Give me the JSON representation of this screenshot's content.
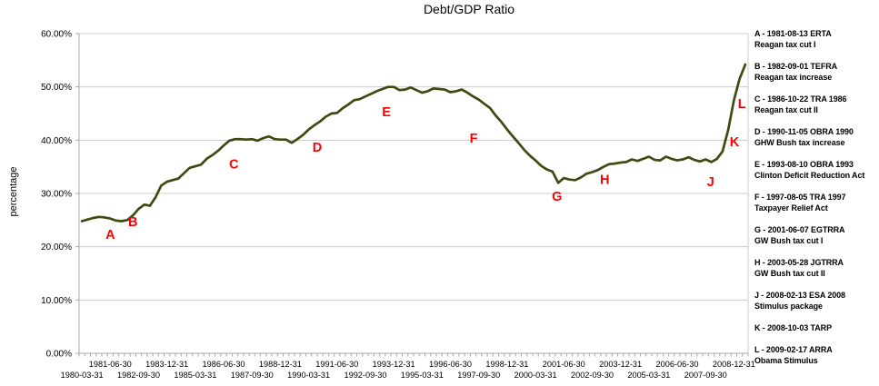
{
  "chart_data": {
    "type": "line",
    "title": "Debt/GDP Ratio",
    "ylabel": "percentage",
    "ylim": [
      0,
      60
    ],
    "grid": "horizontal",
    "legend_position": "right",
    "line_color": "#3E4A12",
    "annotation_color": "#FF0000",
    "gridline_color": "#cccccc",
    "axis_color": "#a8a8a8",
    "y_tick_labels": [
      "0.00%",
      "10.00%",
      "20.00%",
      "30.00%",
      "40.00%",
      "50.00%",
      "60.00%"
    ],
    "x_label_step": 5,
    "x_axis_labels": [
      "1980-03-31",
      "1981-06-30",
      "1982-09-30",
      "1983-12-31",
      "1985-03-31",
      "1986-06-30",
      "1987-09-30",
      "1988-12-31",
      "1990-03-31",
      "1991-06-30",
      "1992-09-30",
      "1993-12-31",
      "1995-03-31",
      "1996-06-30",
      "1997-09-30",
      "1998-12-31",
      "2000-03-31",
      "2001-06-30",
      "2002-09-30",
      "2003-12-31",
      "2005-03-31",
      "2006-06-30",
      "2007-09-30",
      "2008-12-31"
    ],
    "x": [
      "1980-03-31",
      "1980-06-30",
      "1980-09-30",
      "1980-12-31",
      "1981-03-31",
      "1981-06-30",
      "1981-09-30",
      "1981-12-31",
      "1982-03-31",
      "1982-06-30",
      "1982-09-30",
      "1982-12-31",
      "1983-03-31",
      "1983-06-30",
      "1983-09-30",
      "1983-12-31",
      "1984-03-31",
      "1984-06-30",
      "1984-09-30",
      "1984-12-31",
      "1985-03-31",
      "1985-06-30",
      "1985-09-30",
      "1985-12-31",
      "1986-03-31",
      "1986-06-30",
      "1986-09-30",
      "1986-12-31",
      "1987-03-31",
      "1987-06-30",
      "1987-09-30",
      "1987-12-31",
      "1988-03-31",
      "1988-06-30",
      "1988-09-30",
      "1988-12-31",
      "1989-03-31",
      "1989-06-30",
      "1989-09-30",
      "1989-12-31",
      "1990-03-31",
      "1990-06-30",
      "1990-09-30",
      "1990-12-31",
      "1991-03-31",
      "1991-06-30",
      "1991-09-30",
      "1991-12-31",
      "1992-03-31",
      "1992-06-30",
      "1992-09-30",
      "1992-12-31",
      "1993-03-31",
      "1993-06-30",
      "1993-09-30",
      "1993-12-31",
      "1994-03-31",
      "1994-06-30",
      "1994-09-30",
      "1994-12-31",
      "1995-03-31",
      "1995-06-30",
      "1995-09-30",
      "1995-12-31",
      "1996-03-31",
      "1996-06-30",
      "1996-09-30",
      "1996-12-31",
      "1997-03-31",
      "1997-06-30",
      "1997-09-30",
      "1997-12-31",
      "1998-03-31",
      "1998-06-30",
      "1998-09-30",
      "1998-12-31",
      "1999-03-31",
      "1999-06-30",
      "1999-09-30",
      "1999-12-31",
      "2000-03-31",
      "2000-06-30",
      "2000-09-30",
      "2000-12-31",
      "2001-03-31",
      "2001-06-30",
      "2001-09-30",
      "2001-12-31",
      "2002-03-31",
      "2002-06-30",
      "2002-09-30",
      "2002-12-31",
      "2003-03-31",
      "2003-06-30",
      "2003-09-30",
      "2003-12-31",
      "2004-03-31",
      "2004-06-30",
      "2004-09-30",
      "2004-12-31",
      "2005-03-31",
      "2005-06-30",
      "2005-09-30",
      "2005-12-31",
      "2006-03-31",
      "2006-06-30",
      "2006-09-30",
      "2006-12-31",
      "2007-03-31",
      "2007-06-30",
      "2007-09-30",
      "2007-12-31",
      "2008-03-31",
      "2008-06-30",
      "2008-09-30",
      "2008-12-31",
      "2009-03-31",
      "2009-06-30"
    ],
    "series": [
      {
        "name": "Debt/GDP Ratio",
        "values": [
          24.8,
          25.1,
          25.4,
          25.6,
          25.5,
          25.3,
          24.9,
          24.8,
          25.0,
          25.9,
          27.1,
          27.9,
          27.7,
          29.3,
          31.5,
          32.2,
          32.5,
          32.8,
          33.8,
          34.8,
          35.1,
          35.4,
          36.5,
          37.2,
          38.0,
          39.0,
          39.9,
          40.2,
          40.2,
          40.1,
          40.2,
          39.9,
          40.4,
          40.7,
          40.2,
          40.1,
          40.1,
          39.5,
          40.2,
          41.0,
          42.0,
          42.8,
          43.5,
          44.4,
          45.0,
          45.1,
          46.0,
          46.7,
          47.5,
          47.7,
          48.2,
          48.7,
          49.2,
          49.6,
          50.0,
          50.0,
          49.4,
          49.5,
          49.9,
          49.4,
          48.9,
          49.2,
          49.7,
          49.6,
          49.5,
          49.0,
          49.2,
          49.5,
          48.9,
          48.2,
          47.6,
          46.8,
          46.0,
          44.6,
          43.4,
          42.0,
          40.7,
          39.5,
          38.2,
          37.1,
          36.2,
          35.2,
          34.5,
          34.1,
          32.0,
          32.9,
          32.6,
          32.5,
          33.0,
          33.7,
          34.0,
          34.4,
          35.0,
          35.5,
          35.6,
          35.8,
          35.9,
          36.4,
          36.1,
          36.5,
          36.9,
          36.3,
          36.2,
          36.9,
          36.5,
          36.2,
          36.4,
          36.8,
          36.3,
          36.0,
          36.4,
          35.9,
          36.5,
          37.9,
          42.0,
          47.5,
          51.5,
          54.2
        ]
      }
    ],
    "events": [
      {
        "letter": "A",
        "q": 5.0,
        "pct": 22.3,
        "legend_title": "A - 1981-08-13 ERTA",
        "legend_desc": "Reagan tax cut I"
      },
      {
        "letter": "B",
        "q": 9.0,
        "pct": 24.7,
        "legend_title": "B - 1982-09-01 TEFRA",
        "legend_desc": "Reagan tax increase"
      },
      {
        "letter": "C",
        "q": 26.8,
        "pct": 35.5,
        "legend_title": "C - 1986-10-22 TRA 1986",
        "legend_desc": "Reagan tax cut II"
      },
      {
        "letter": "D",
        "q": 41.5,
        "pct": 38.7,
        "legend_title": "D - 1990-11-05 OBRA 1990",
        "legend_desc": "GHW Bush tax increase"
      },
      {
        "letter": "E",
        "q": 53.7,
        "pct": 45.3,
        "legend_title": "E - 1993-08-10 OBRA 1993",
        "legend_desc": "Clinton Deficit Reduction Act"
      },
      {
        "letter": "F",
        "q": 69.1,
        "pct": 40.4,
        "legend_title": "F - 1997-08-05 TRA 1997",
        "legend_desc": "Taxpayer Relief Act"
      },
      {
        "letter": "G",
        "q": 83.8,
        "pct": 29.5,
        "legend_title": "G - 2001-06-07 EGTRRA",
        "legend_desc": "GW Bush tax cut I"
      },
      {
        "letter": "H",
        "q": 92.2,
        "pct": 32.6,
        "legend_title": "H - 2003-05-28 JGTRRA",
        "legend_desc": "GW Bush tax cut II"
      },
      {
        "letter": "J",
        "q": 110.9,
        "pct": 32.2,
        "legend_title": "J - 2008-02-13 ESA 2008",
        "legend_desc": "Stimulus package"
      },
      {
        "letter": "K",
        "q": 115.1,
        "pct": 39.7,
        "legend_title": "K - 2008-10-03 TARP",
        "legend_desc": ""
      },
      {
        "letter": "L",
        "q": 116.4,
        "pct": 46.9,
        "legend_title": "L - 2009-02-17 ARRA",
        "legend_desc": "Obama Stimulus"
      }
    ]
  }
}
